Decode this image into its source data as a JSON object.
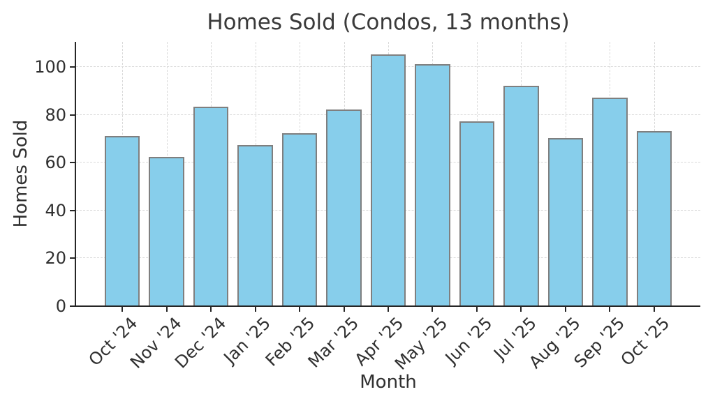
{
  "chart_data": {
    "type": "bar",
    "title": "Homes Sold (Condos, 13 months)",
    "xlabel": "Month",
    "ylabel": "Homes Sold",
    "categories": [
      "Oct '24",
      "Nov '24",
      "Dec '24",
      "Jan '25",
      "Feb '25",
      "Mar '25",
      "Apr '25",
      "May '25",
      "Jun '25",
      "Jul '25",
      "Aug '25",
      "Sep '25",
      "Oct '25"
    ],
    "values": [
      71,
      62,
      83,
      67,
      72,
      82,
      105,
      101,
      77,
      92,
      70,
      87,
      73
    ],
    "yticks": [
      0,
      20,
      40,
      60,
      80,
      100
    ],
    "ylim": [
      0,
      110.25
    ],
    "x_margin_units": 1.04,
    "bar_width_fraction": 0.8,
    "grid": true,
    "grid_axis": "both",
    "grid_style": "dashed",
    "xtick_rotation_deg": 45,
    "legend_position": "none",
    "colors": {
      "bar_fill": "#87CEEB",
      "bar_edge": "#7F7F7F",
      "grid": "#D9D9D9",
      "axis": "#262626",
      "text": "#303030",
      "background": "#FFFFFF"
    }
  }
}
